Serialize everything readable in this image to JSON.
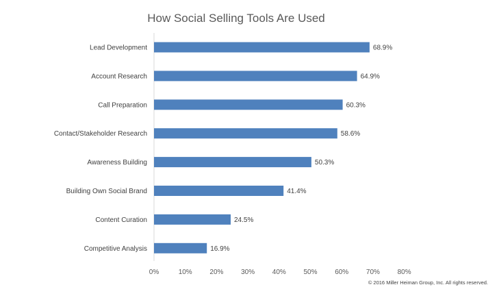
{
  "chart_data": {
    "type": "bar",
    "orientation": "horizontal",
    "title": "How Social Selling Tools Are Used",
    "xlabel": "",
    "ylabel": "",
    "categories": [
      "Lead Development",
      "Account Research",
      "Call Preparation",
      "Contact/Stakeholder Research",
      "Awareness Building",
      "Building Own Social Brand",
      "Content Curation",
      "Competitive Analysis"
    ],
    "values": [
      68.9,
      64.9,
      60.3,
      58.6,
      50.3,
      41.4,
      24.5,
      16.9
    ],
    "value_labels": [
      "68.9%",
      "64.9%",
      "60.3%",
      "58.6%",
      "50.3%",
      "41.4%",
      "24.5%",
      "16.9%"
    ],
    "xlim": [
      0,
      80
    ],
    "ticks": [
      0,
      10,
      20,
      30,
      40,
      50,
      60,
      70,
      80
    ],
    "tick_labels": [
      "0%",
      "10%",
      "20%",
      "30%",
      "40%",
      "50%",
      "60%",
      "70%",
      "80%"
    ],
    "grid": false,
    "legend": "none",
    "bar_color": "#4f81bd"
  },
  "footer": {
    "copyright": "© 2016 Miller Heiman Group, Inc. All rights reserved."
  }
}
